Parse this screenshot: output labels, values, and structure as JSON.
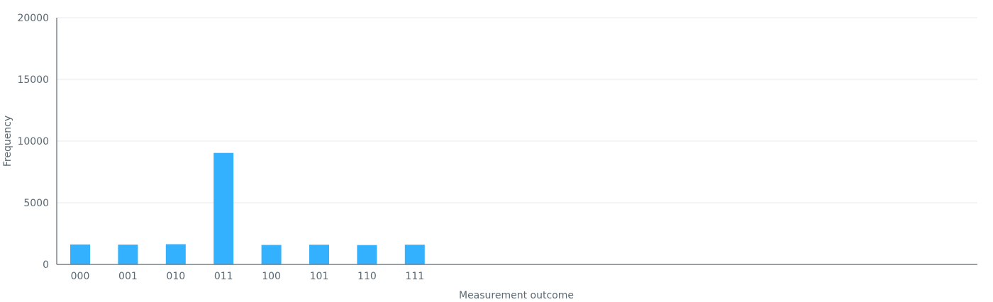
{
  "chart_data": {
    "type": "bar",
    "title": "",
    "xlabel": "Measurement outcome",
    "ylabel": "Frequency",
    "categories": [
      "000",
      "001",
      "010",
      "011",
      "100",
      "101",
      "110",
      "111"
    ],
    "values": [
      1620,
      1610,
      1640,
      9040,
      1580,
      1600,
      1570,
      1600
    ],
    "ylim": [
      0,
      20000
    ],
    "yticks": [
      0,
      5000,
      10000,
      15000,
      20000
    ],
    "ytick_labels": [
      "0",
      "5000",
      "10000",
      "15000",
      "20000"
    ],
    "grid": true,
    "bar_color": "#33b1ff",
    "grid_color": "#e4e8ec",
    "axis_color": "#5a6872"
  }
}
